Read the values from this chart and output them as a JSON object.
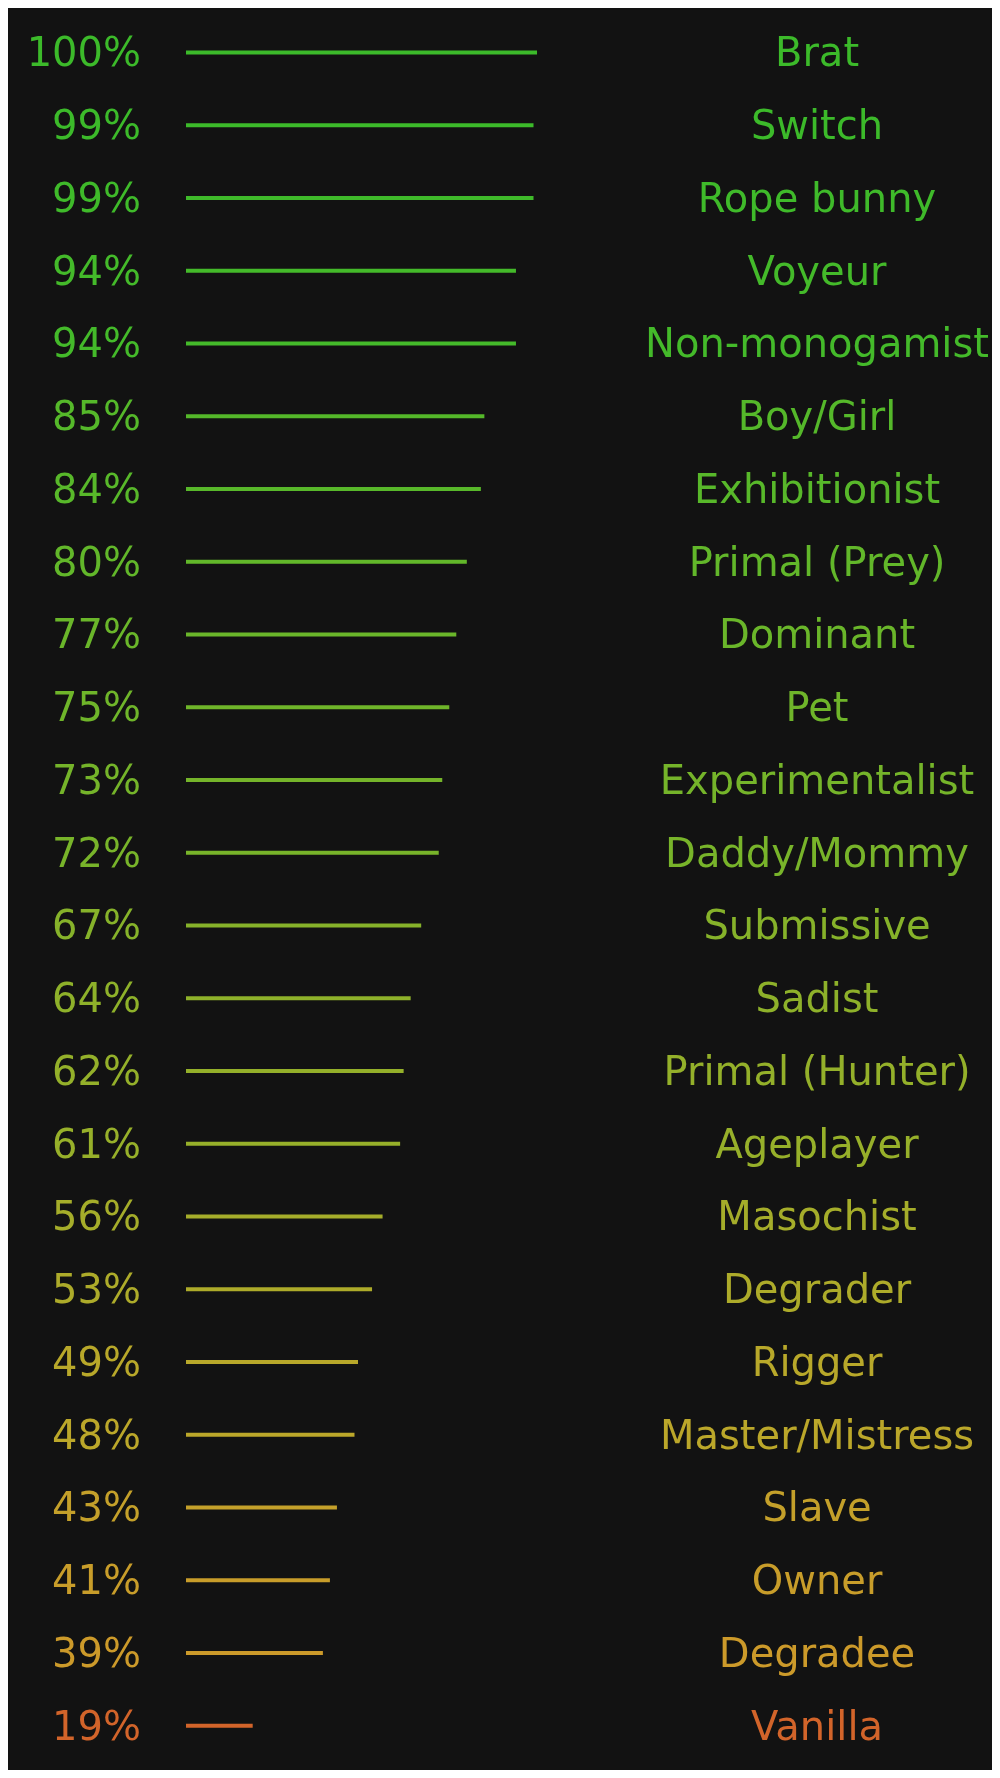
{
  "chart_data": {
    "type": "bar",
    "orientation": "horizontal",
    "categories": [
      "Brat",
      "Switch",
      "Rope bunny",
      "Voyeur",
      "Non-monogamist",
      "Boy/Girl",
      "Exhibitionist",
      "Primal (Prey)",
      "Dominant",
      "Pet",
      "Experimentalist",
      "Daddy/Mommy",
      "Submissive",
      "Sadist",
      "Primal (Hunter)",
      "Ageplayer",
      "Masochist",
      "Degrader",
      "Rigger",
      "Master/Mistress",
      "Slave",
      "Owner",
      "Degradee",
      "Vanilla"
    ],
    "values": [
      100,
      99,
      99,
      94,
      94,
      85,
      84,
      80,
      77,
      75,
      73,
      72,
      67,
      64,
      62,
      61,
      56,
      53,
      49,
      48,
      43,
      41,
      39,
      19
    ],
    "value_labels": [
      "100%",
      "99%",
      "99%",
      "94%",
      "94%",
      "85%",
      "84%",
      "80%",
      "77%",
      "75%",
      "73%",
      "72%",
      "67%",
      "64%",
      "62%",
      "61%",
      "56%",
      "53%",
      "49%",
      "48%",
      "43%",
      "41%",
      "39%",
      "19%"
    ],
    "colors": [
      "#3cba2a",
      "#3cba2a",
      "#3fba2a",
      "#44ba2a",
      "#44ba2a",
      "#55b82a",
      "#58b82a",
      "#62b72a",
      "#6ab62a",
      "#6fb52a",
      "#75b42a",
      "#78b42a",
      "#86b22a",
      "#8eb12a",
      "#94b02a",
      "#97b02a",
      "#a5ad2a",
      "#adab2a",
      "#b8a82a",
      "#bba72a",
      "#c4a02a",
      "#c89d2a",
      "#cc9a2a",
      "#d2642a"
    ]
  }
}
